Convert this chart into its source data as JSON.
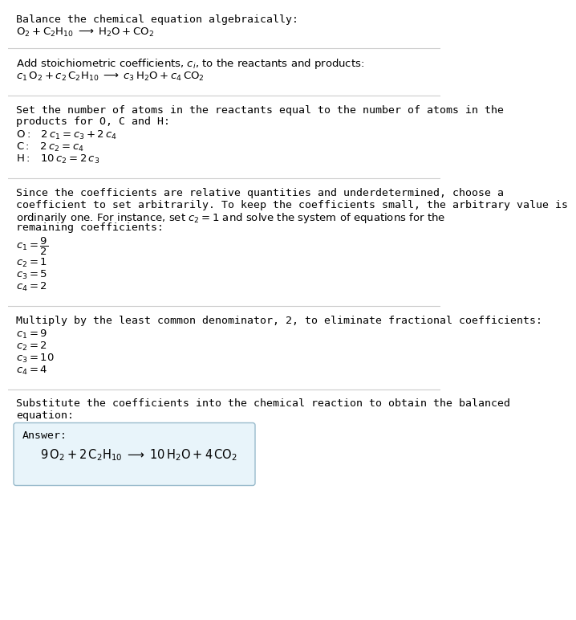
{
  "bg_color": "#ffffff",
  "text_color": "#000000",
  "line_color": "#cccccc",
  "answer_box_color": "#e8f4fa",
  "answer_box_border": "#99bbcc",
  "font_size": 9.5,
  "font_size_math": 9.5,
  "font_family": "monospace",
  "sections": [
    {
      "type": "text_then_math",
      "text": "Balance the chemical equation algebraically:",
      "math": "$\\mathrm{O_2 + C_2H_{10} \\;\\longrightarrow\\; H_2O + CO_2}$",
      "hline_after": true
    },
    {
      "type": "text_then_math",
      "text": "Add stoichiometric coefficients, $c_i$, to the reactants and products:",
      "math": "$c_1\\,\\mathrm{O_2} + c_2\\,\\mathrm{C_2H_{10}} \\;\\longrightarrow\\; c_3\\,\\mathrm{H_2O} + c_4\\,\\mathrm{CO_2}$",
      "hline_after": true
    },
    {
      "type": "text_then_mathlist",
      "text": "Set the number of atoms in the reactants equal to the number of atoms in the\nproducts for O, C and H:",
      "mathlist": [
        "$\\mathrm{O:\\;}\\;\\; 2\\,c_1 = c_3 + 2\\,c_4$",
        "$\\mathrm{C:\\;}\\;\\; 2\\,c_2 = c_4$",
        "$\\mathrm{H:\\;}\\;\\; 10\\,c_2 = 2\\,c_3$"
      ],
      "hline_after": true
    },
    {
      "type": "text_then_mathlist",
      "text": "Since the coefficients are relative quantities and underdetermined, choose a\ncoefficient to set arbitrarily. To keep the coefficients small, the arbitrary value is\nordinarily one. For instance, set $c_2 = 1$ and solve the system of equations for the\nremaining coefficients:",
      "mathlist": [
        "$c_1 = \\dfrac{9}{2}$",
        "$c_2 = 1$",
        "$c_3 = 5$",
        "$c_4 = 2$"
      ],
      "hline_after": true
    },
    {
      "type": "text_then_mathlist",
      "text": "Multiply by the least common denominator, 2, to eliminate fractional coefficients:",
      "mathlist": [
        "$c_1 = 9$",
        "$c_2 = 2$",
        "$c_3 = 10$",
        "$c_4 = 4$"
      ],
      "hline_after": true
    },
    {
      "type": "text_then_answer",
      "text": "Substitute the coefficients into the chemical reaction to obtain the balanced\nequation:",
      "answer_label": "Answer:",
      "answer_math": "$9\\,\\mathrm{O_2} + 2\\,\\mathrm{C_2H_{10}} \\;\\longrightarrow\\; 10\\,\\mathrm{H_2O} + 4\\,\\mathrm{CO_2}$",
      "hline_after": false
    }
  ]
}
